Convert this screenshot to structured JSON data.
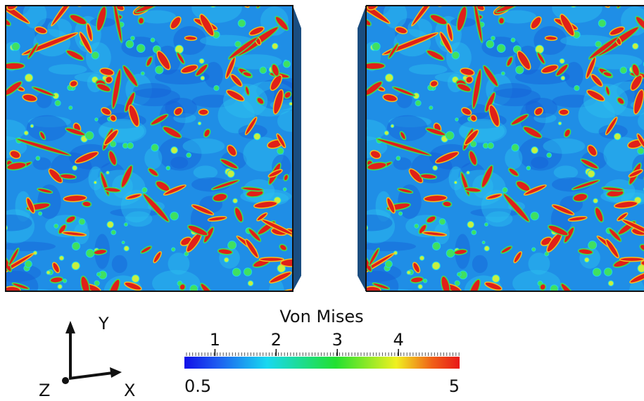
{
  "colorbar": {
    "title": "Von Mises",
    "min": 0.5,
    "max": 5,
    "ticks": [
      1,
      2,
      3,
      4
    ]
  },
  "axes": {
    "x": "X",
    "y": "Y",
    "z": "Z"
  }
}
